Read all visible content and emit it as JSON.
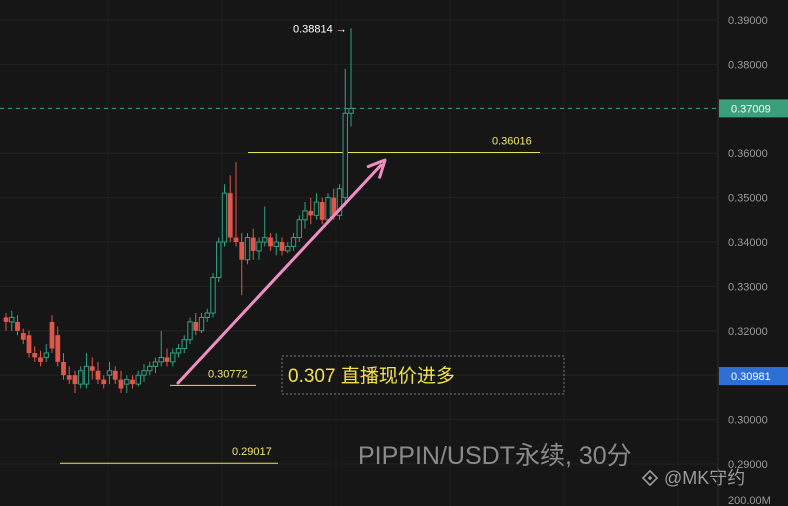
{
  "chart_data": {
    "type": "candlestick",
    "ylim": [
      0.2878,
      0.3925
    ],
    "y_ticks": [
      "0.39000",
      "0.38000",
      "0.37000",
      "0.36000",
      "0.35000",
      "0.34000",
      "0.33000",
      "0.32000",
      "0.31000",
      "0.30000",
      "0.29000"
    ],
    "volume_tick": "200.00M",
    "candles": [
      [
        0.323,
        0.324,
        0.32,
        0.322
      ],
      [
        0.322,
        0.3245,
        0.32,
        0.323
      ],
      [
        0.322,
        0.3235,
        0.319,
        0.32
      ],
      [
        0.3195,
        0.3205,
        0.317,
        0.318
      ],
      [
        0.319,
        0.32,
        0.314,
        0.315
      ],
      [
        0.315,
        0.3165,
        0.313,
        0.314
      ],
      [
        0.314,
        0.3155,
        0.312,
        0.313
      ],
      [
        0.314,
        0.317,
        0.313,
        0.315
      ],
      [
        0.322,
        0.3235,
        0.315,
        0.316
      ],
      [
        0.319,
        0.321,
        0.312,
        0.313
      ],
      [
        0.313,
        0.315,
        0.309,
        0.31
      ],
      [
        0.31,
        0.312,
        0.308,
        0.309
      ],
      [
        0.31,
        0.311,
        0.306,
        0.308
      ],
      [
        0.308,
        0.312,
        0.307,
        0.311
      ],
      [
        0.308,
        0.315,
        0.307,
        0.312
      ],
      [
        0.312,
        0.314,
        0.309,
        0.311
      ],
      [
        0.311,
        0.313,
        0.308,
        0.309
      ],
      [
        0.309,
        0.31,
        0.307,
        0.308
      ],
      [
        0.31,
        0.313,
        0.308,
        0.311
      ],
      [
        0.311,
        0.312,
        0.308,
        0.309
      ],
      [
        0.309,
        0.311,
        0.306,
        0.307
      ],
      [
        0.308,
        0.31,
        0.306,
        0.309
      ],
      [
        0.309,
        0.31,
        0.307,
        0.308
      ],
      [
        0.308,
        0.311,
        0.3075,
        0.31
      ],
      [
        0.31,
        0.3125,
        0.3085,
        0.311
      ],
      [
        0.311,
        0.313,
        0.31,
        0.312
      ],
      [
        0.312,
        0.314,
        0.3105,
        0.313
      ],
      [
        0.313,
        0.32,
        0.312,
        0.314
      ],
      [
        0.314,
        0.316,
        0.312,
        0.313
      ],
      [
        0.313,
        0.316,
        0.312,
        0.315
      ],
      [
        0.315,
        0.317,
        0.314,
        0.316
      ],
      [
        0.316,
        0.319,
        0.315,
        0.318
      ],
      [
        0.318,
        0.323,
        0.317,
        0.322
      ],
      [
        0.322,
        0.324,
        0.319,
        0.32
      ],
      [
        0.32,
        0.324,
        0.3195,
        0.323
      ],
      [
        0.323,
        0.325,
        0.322,
        0.324
      ],
      [
        0.324,
        0.333,
        0.323,
        0.332
      ],
      [
        0.332,
        0.341,
        0.331,
        0.34
      ],
      [
        0.34,
        0.353,
        0.339,
        0.351
      ],
      [
        0.351,
        0.355,
        0.34,
        0.341
      ],
      [
        0.341,
        0.358,
        0.339,
        0.34
      ],
      [
        0.34,
        0.342,
        0.328,
        0.336
      ],
      [
        0.336,
        0.342,
        0.335,
        0.341
      ],
      [
        0.341,
        0.343,
        0.336,
        0.338
      ],
      [
        0.338,
        0.341,
        0.336,
        0.34
      ],
      [
        0.34,
        0.348,
        0.339,
        0.341
      ],
      [
        0.341,
        0.342,
        0.338,
        0.339
      ],
      [
        0.339,
        0.342,
        0.337,
        0.34
      ],
      [
        0.34,
        0.341,
        0.337,
        0.338
      ],
      [
        0.338,
        0.34,
        0.3375,
        0.339
      ],
      [
        0.339,
        0.342,
        0.338,
        0.341
      ],
      [
        0.341,
        0.346,
        0.34,
        0.345
      ],
      [
        0.345,
        0.349,
        0.343,
        0.347
      ],
      [
        0.347,
        0.35,
        0.344,
        0.346
      ],
      [
        0.346,
        0.351,
        0.345,
        0.349
      ],
      [
        0.349,
        0.35,
        0.344,
        0.345
      ],
      [
        0.345,
        0.351,
        0.344,
        0.35
      ],
      [
        0.35,
        0.352,
        0.345,
        0.346
      ],
      [
        0.346,
        0.353,
        0.345,
        0.352
      ],
      [
        0.35,
        0.379,
        0.348,
        0.369
      ],
      [
        0.369,
        0.3881,
        0.366,
        0.3701
      ]
    ],
    "levels": [
      {
        "label": "0.36016",
        "value": 0.36016
      },
      {
        "label": "0.30772",
        "value": 0.30772
      },
      {
        "label": "0.29017",
        "value": 0.29017
      }
    ],
    "high_marker": {
      "label": "0.38814",
      "value": 0.38814
    },
    "current_price": {
      "label": "0.37009",
      "value": 0.37009
    },
    "price_marker": {
      "label": "0.30981",
      "value": 0.30981
    }
  },
  "annotation": "0.307 直播现价进多",
  "watermark": "PIPPIN/USDT永续, 30分",
  "watermark_source": "@MK守约",
  "colors": {
    "up": "#2fa383",
    "down": "#e0564a",
    "level_line": "#e9e05a",
    "current_badge": "#3aa07c",
    "marker_badge": "#2e6fd6",
    "arrow": "#f08ec4"
  }
}
